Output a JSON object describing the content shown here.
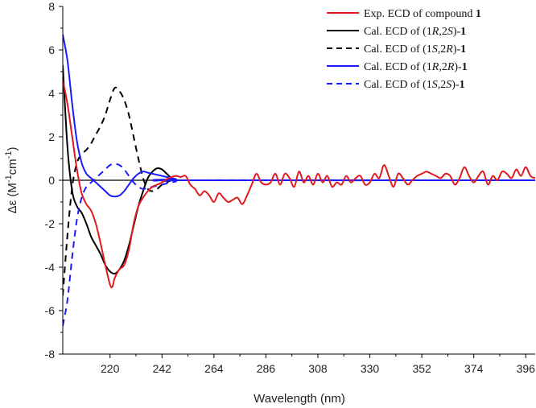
{
  "chart_data": {
    "type": "line",
    "title": "",
    "xlabel": "Wavelength (nm)",
    "ylabel_prefix": "Δε (M",
    "ylabel_sup1": "-1",
    "ylabel_mid": "cm",
    "ylabel_sup2": "-1",
    "ylabel_suffix": ")",
    "xlim": [
      200,
      400
    ],
    "ylim": [
      -8,
      8
    ],
    "xticks": [
      220,
      242,
      264,
      286,
      308,
      330,
      352,
      374,
      396
    ],
    "yticks": [
      -8,
      -6,
      -4,
      -2,
      0,
      2,
      4,
      6,
      8
    ],
    "legend_position": "top-right",
    "series": [
      {
        "name": "Exp. ECD of compound 1",
        "legend": {
          "plain": "Exp. ECD of compound ",
          "bold": "1"
        },
        "color": "#e0191f",
        "dash": "solid",
        "x": [
          200,
          202,
          204,
          206,
          208,
          210,
          212,
          214,
          216,
          218,
          220,
          221,
          222,
          224,
          226,
          228,
          230,
          232,
          234,
          236,
          238,
          240,
          242,
          244,
          246,
          248,
          250,
          252,
          254,
          256,
          258,
          260,
          262,
          264,
          266,
          268,
          270,
          272,
          274,
          276,
          278,
          280,
          282,
          284,
          286,
          288,
          290,
          292,
          294,
          296,
          298,
          300,
          302,
          304,
          306,
          308,
          310,
          312,
          314,
          316,
          318,
          320,
          322,
          324,
          326,
          328,
          330,
          332,
          334,
          336,
          338,
          340,
          342,
          344,
          346,
          348,
          350,
          352,
          354,
          356,
          358,
          360,
          362,
          364,
          366,
          368,
          370,
          372,
          374,
          376,
          378,
          380,
          382,
          384,
          386,
          388,
          390,
          392,
          394,
          396,
          398,
          400
        ],
        "y": [
          4.6,
          3.5,
          2.0,
          0.5,
          -0.6,
          -1.1,
          -1.4,
          -2.0,
          -2.9,
          -3.9,
          -4.8,
          -4.9,
          -4.5,
          -4.1,
          -3.9,
          -3.2,
          -2.0,
          -1.2,
          -0.8,
          -0.5,
          -0.3,
          -0.2,
          -0.1,
          0.05,
          0.15,
          0.2,
          0.15,
          0.2,
          -0.2,
          -0.4,
          -0.7,
          -0.5,
          -0.7,
          -1.0,
          -0.6,
          -0.8,
          -1.0,
          -0.9,
          -0.8,
          -1.1,
          -0.7,
          -0.2,
          0.3,
          -0.1,
          -0.2,
          -0.1,
          0.3,
          -0.2,
          0.3,
          0.1,
          -0.3,
          0.4,
          -0.1,
          0.2,
          -0.2,
          0.3,
          -0.1,
          0.2,
          -0.3,
          -0.1,
          -0.2,
          0.2,
          -0.1,
          0.1,
          0.2,
          -0.2,
          -0.1,
          0.3,
          0.1,
          0.7,
          0.2,
          -0.3,
          0.3,
          0.1,
          -0.2,
          0.0,
          0.2,
          0.3,
          0.4,
          0.3,
          0.2,
          0.1,
          0.3,
          0.2,
          -0.2,
          0.1,
          0.6,
          0.2,
          -0.1,
          0.2,
          0.4,
          -0.2,
          0.2,
          0.0,
          0.4,
          0.3,
          0.1,
          0.5,
          0.2,
          0.6,
          0.2,
          0.1
        ]
      },
      {
        "name": "Cal. ECD of (1R,2S)-1",
        "legend": {
          "pre": "Cal. ECD of (1",
          "i1": "R",
          "mid": ",2",
          "i2": "S",
          "post": ")-",
          "bold": "1"
        },
        "color": "#000000",
        "dash": "solid",
        "x": [
          200,
          202,
          204,
          206,
          208,
          210,
          212,
          214,
          216,
          218,
          220,
          222,
          224,
          226,
          228,
          230,
          232,
          234,
          236,
          238,
          240,
          242,
          244,
          246,
          248,
          250,
          400
        ],
        "y": [
          5.3,
          1.5,
          -0.5,
          -1.2,
          -1.5,
          -2.0,
          -2.6,
          -3.0,
          -3.4,
          -3.9,
          -4.2,
          -4.3,
          -4.1,
          -3.7,
          -3.0,
          -2.1,
          -1.2,
          -0.5,
          0.1,
          0.4,
          0.55,
          0.5,
          0.3,
          0.1,
          0.0,
          0.0,
          0.0
        ]
      },
      {
        "name": "Cal. ECD of (1S,2R)-1",
        "legend": {
          "pre": "Cal. ECD of (1",
          "i1": "S",
          "mid": ",2",
          "i2": "R",
          "post": ")-",
          "bold": "1"
        },
        "color": "#000000",
        "dash": "dashed",
        "x": [
          200,
          202,
          204,
          206,
          208,
          210,
          212,
          214,
          216,
          218,
          220,
          222,
          224,
          226,
          228,
          230,
          232,
          234,
          236,
          238,
          240,
          242,
          244,
          246,
          248,
          250,
          400
        ],
        "y": [
          -5.3,
          -2.5,
          -0.3,
          0.8,
          1.2,
          1.4,
          1.7,
          2.1,
          2.5,
          3.0,
          3.7,
          4.25,
          4.1,
          3.7,
          3.0,
          2.0,
          1.0,
          0.1,
          -0.4,
          -0.5,
          -0.4,
          -0.2,
          -0.1,
          0.0,
          0.0,
          0.0,
          0.0
        ]
      },
      {
        "name": "Cal. ECD of (1R,2R)-1",
        "legend": {
          "pre": "Cal. ECD of (1",
          "i1": "R",
          "mid": ",2",
          "i2": "R",
          "post": ")-",
          "bold": "1"
        },
        "color": "#1a1aff",
        "dash": "solid",
        "x": [
          200,
          202,
          204,
          206,
          208,
          210,
          212,
          214,
          216,
          218,
          220,
          222,
          224,
          226,
          228,
          230,
          232,
          234,
          236,
          238,
          240,
          242,
          244,
          246,
          248,
          250,
          400
        ],
        "y": [
          6.7,
          5.5,
          3.5,
          1.8,
          0.8,
          0.3,
          0.1,
          -0.1,
          -0.3,
          -0.5,
          -0.7,
          -0.75,
          -0.7,
          -0.5,
          -0.2,
          0.1,
          0.3,
          0.4,
          0.35,
          0.3,
          0.25,
          0.2,
          0.15,
          0.1,
          0.05,
          0.0,
          0.0
        ]
      },
      {
        "name": "Cal. ECD of (1S,2S)-1",
        "legend": {
          "pre": "Cal. ECD of (1",
          "i1": "S",
          "mid": ",2",
          "i2": "S",
          "post": ")-",
          "bold": "1"
        },
        "color": "#1a1aff",
        "dash": "dashed",
        "x": [
          200,
          202,
          204,
          206,
          208,
          210,
          212,
          214,
          216,
          218,
          220,
          222,
          224,
          226,
          228,
          230,
          232,
          234,
          236,
          238,
          240,
          242,
          244,
          246,
          248,
          250,
          400
        ],
        "y": [
          -6.7,
          -5.5,
          -3.5,
          -1.8,
          -0.8,
          -0.3,
          -0.1,
          0.1,
          0.3,
          0.5,
          0.7,
          0.75,
          0.7,
          0.5,
          0.2,
          -0.1,
          -0.3,
          -0.4,
          -0.35,
          -0.3,
          -0.25,
          -0.2,
          -0.15,
          -0.1,
          -0.05,
          0.0,
          0.0
        ]
      }
    ]
  }
}
